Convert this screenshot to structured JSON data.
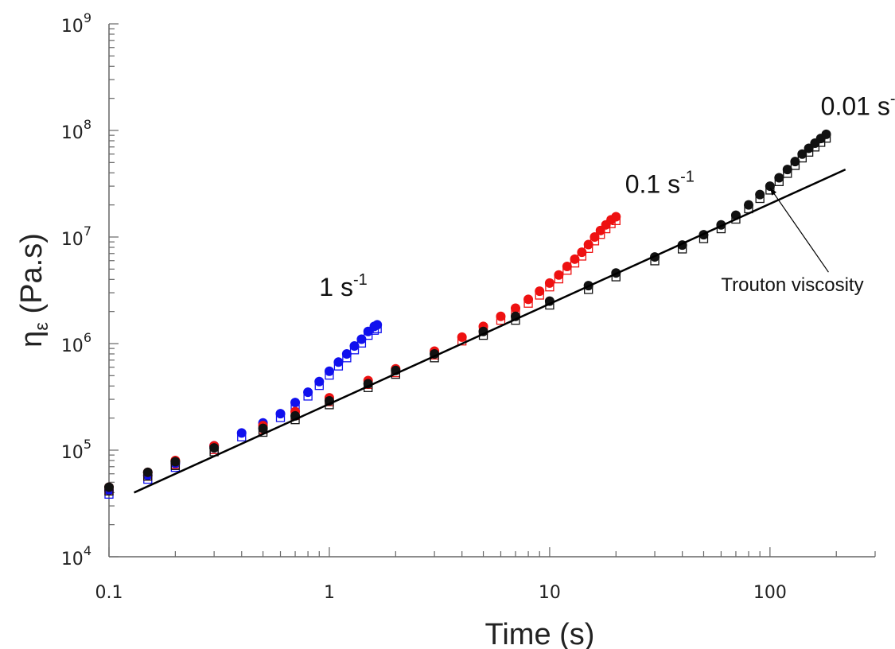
{
  "chart_data": {
    "type": "scatter",
    "x_scale": "log",
    "y_scale": "log",
    "xlim": [
      0.1,
      300
    ],
    "ylim": [
      10000,
      1000000000
    ],
    "xlabel": "Time (s)",
    "ylabel": "ηε (Pa.s)",
    "x_ticks": [
      {
        "value": 0.1,
        "label": "0.1"
      },
      {
        "value": 1,
        "label": "1"
      },
      {
        "value": 10,
        "label": "10"
      },
      {
        "value": 100,
        "label": "100"
      }
    ],
    "y_ticks": [
      {
        "value": 10000,
        "base": "10",
        "exp": "4"
      },
      {
        "value": 100000,
        "base": "10",
        "exp": "5"
      },
      {
        "value": 1000000,
        "base": "10",
        "exp": "6"
      },
      {
        "value": 10000000,
        "base": "10",
        "exp": "7"
      },
      {
        "value": 100000000,
        "base": "10",
        "exp": "8"
      },
      {
        "value": 1000000000,
        "base": "10",
        "exp": "9"
      }
    ],
    "grid": false,
    "series": [
      {
        "name": "1 s-1",
        "color": "#1010ee",
        "marker": "filled-circle",
        "x": [
          0.1,
          0.15,
          0.2,
          0.3,
          0.4,
          0.5,
          0.6,
          0.7,
          0.8,
          0.9,
          1.0,
          1.1,
          1.2,
          1.3,
          1.4,
          1.5,
          1.6,
          1.65
        ],
        "y": [
          42000,
          58000,
          75000,
          110000,
          145000,
          180000,
          220000,
          280000,
          350000,
          440000,
          550000,
          670000,
          800000,
          950000,
          1100000,
          1300000,
          1450000,
          1500000
        ]
      },
      {
        "name": "0.1 s-1",
        "color": "#ee1111",
        "marker": "filled-circle",
        "x": [
          0.1,
          0.15,
          0.2,
          0.3,
          0.5,
          0.7,
          1.0,
          1.5,
          2,
          3,
          4,
          5,
          6,
          7,
          8,
          9,
          10,
          11,
          12,
          13,
          14,
          15,
          16,
          17,
          18,
          19,
          20
        ],
        "y": [
          45000,
          62000,
          80000,
          110000,
          170000,
          230000,
          310000,
          450000,
          580000,
          850000,
          1150000,
          1450000,
          1800000,
          2150000,
          2600000,
          3100000,
          3700000,
          4400000,
          5300000,
          6200000,
          7200000,
          8500000,
          10000000,
          11500000,
          13000000,
          14500000,
          15500000
        ]
      },
      {
        "name": "0.01 s-1",
        "color": "#111111",
        "marker": "filled-circle",
        "x": [
          0.1,
          0.15,
          0.2,
          0.3,
          0.5,
          0.7,
          1,
          1.5,
          2,
          3,
          5,
          7,
          10,
          15,
          20,
          30,
          40,
          50,
          60,
          70,
          80,
          90,
          100,
          110,
          120,
          130,
          140,
          150,
          160,
          170,
          180
        ],
        "y": [
          45000,
          62000,
          78000,
          105000,
          160000,
          210000,
          290000,
          420000,
          560000,
          800000,
          1300000,
          1800000,
          2500000,
          3500000,
          4600000,
          6500000,
          8400000,
          10500000,
          13000000,
          16000000,
          20000000,
          25000000,
          30000000,
          36000000,
          43000000,
          51000000,
          60000000,
          68000000,
          76000000,
          84000000,
          92000000
        ]
      },
      {
        "name": "Trouton viscosity",
        "color": "#000000",
        "marker": "line",
        "x": [
          0.13,
          220
        ],
        "y": [
          40000,
          43000000
        ]
      }
    ],
    "annotations": [
      {
        "text": "1 s",
        "sup": "-1",
        "x": 0.9,
        "y": 2800000
      },
      {
        "text": "0.1 s",
        "sup": "-1",
        "x": 22,
        "y": 26000000
      },
      {
        "text": "0.01 s",
        "sup": "-1",
        "x": 170,
        "y": 140000000
      },
      {
        "text": "Trouton viscosity",
        "x": 60,
        "y": 3100000,
        "arrow_to_x": 100,
        "arrow_to_y": 29000000
      }
    ]
  }
}
